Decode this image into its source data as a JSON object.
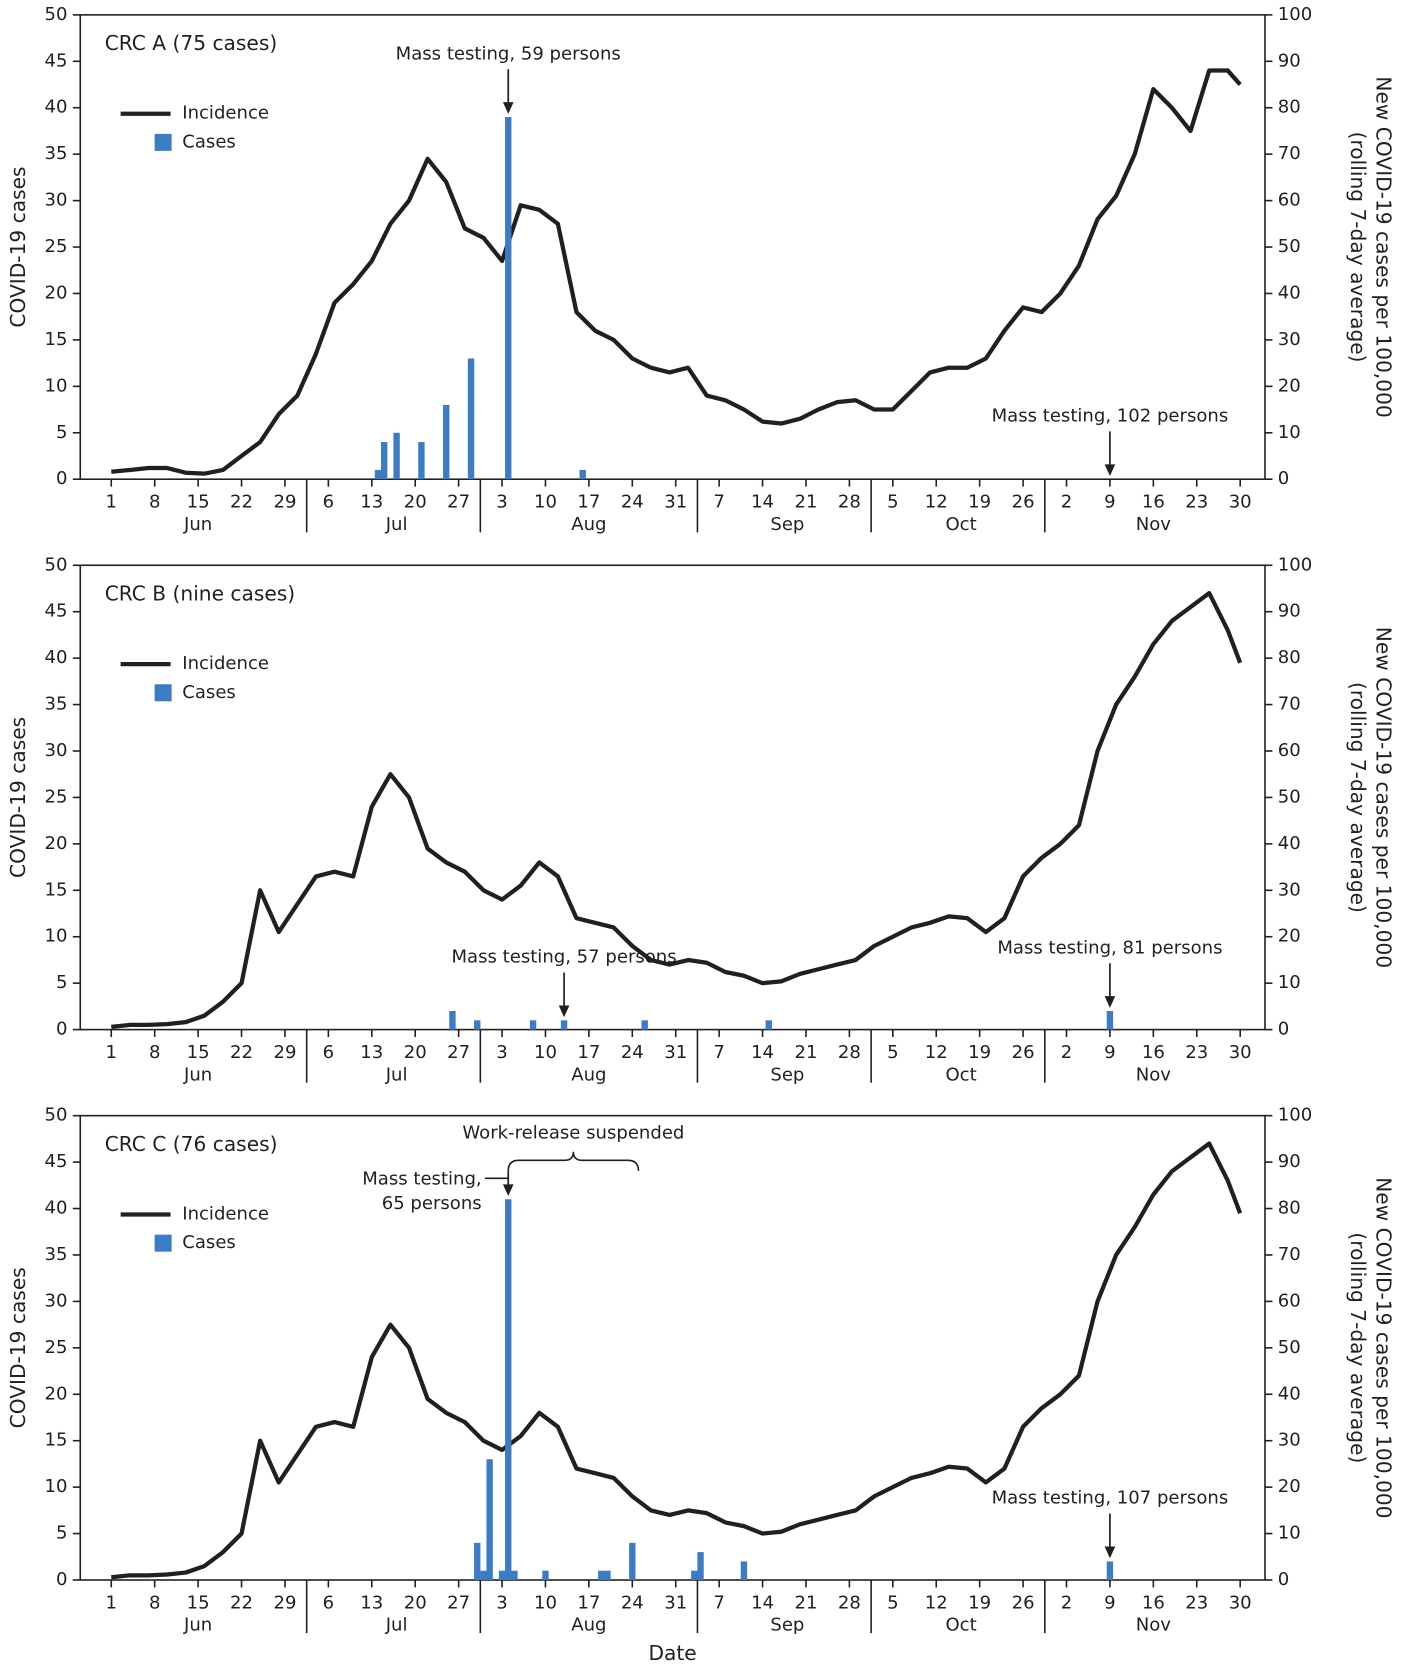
{
  "chart_data": [
    {
      "type": "combo",
      "title": "CRC A (75 cases)",
      "ylabel": "COVID-19 cases",
      "y2label": [
        "New COVID-19 cases per 100,000",
        "(rolling 7-day average)"
      ],
      "xlim": [
        -4,
        187
      ],
      "ylim": [
        0,
        50
      ],
      "y2lim": [
        0,
        100
      ],
      "legend": "upper left",
      "xticks": [
        1,
        8,
        15,
        22,
        29,
        {
          "value": 36,
          "label": "6"
        },
        {
          "value": 43,
          "label": "13"
        },
        {
          "value": 50,
          "label": "20"
        },
        {
          "value": 57,
          "label": "27"
        },
        {
          "value": 64,
          "label": "3"
        },
        {
          "value": 71,
          "label": "10"
        },
        {
          "value": 78,
          "label": "17"
        },
        {
          "value": 85,
          "label": "24"
        },
        {
          "value": 92,
          "label": "31"
        },
        {
          "value": 99,
          "label": "7"
        },
        {
          "value": 106,
          "label": "14"
        },
        {
          "value": 113,
          "label": "21"
        },
        {
          "value": 120,
          "label": "28"
        },
        {
          "value": 127,
          "label": "5"
        },
        {
          "value": 134,
          "label": "12"
        },
        {
          "value": 141,
          "label": "19"
        },
        {
          "value": 148,
          "label": "26"
        },
        {
          "value": 155,
          "label": "2"
        },
        {
          "value": 162,
          "label": "9"
        },
        {
          "value": 169,
          "label": "16"
        },
        {
          "value": 176,
          "label": "23"
        },
        {
          "value": 183,
          "label": "30"
        }
      ],
      "months": [
        {
          "value": 15,
          "label": "Jun"
        },
        {
          "value": 47,
          "label": "Jul"
        },
        {
          "value": 78,
          "label": "Aug"
        },
        {
          "value": 110,
          "label": "Sep"
        },
        {
          "value": 138,
          "label": "Oct"
        },
        {
          "value": 169,
          "label": "Nov"
        }
      ],
      "yticks": [
        0,
        5,
        10,
        15,
        20,
        25,
        30,
        35,
        40,
        45,
        50
      ],
      "y2ticks": [
        0,
        10,
        20,
        30,
        40,
        50,
        60,
        70,
        80,
        90,
        100
      ],
      "series": [
        {
          "name": "Incidence",
          "type": "line",
          "axis": "y2",
          "color": "#231f20",
          "x": [
            1,
            4,
            7,
            10,
            13,
            16,
            19,
            22,
            25,
            28,
            31,
            34,
            37,
            40,
            43,
            46,
            49,
            52,
            55,
            58,
            61,
            64,
            67,
            70,
            73,
            76,
            79,
            82,
            85,
            88,
            91,
            94,
            97,
            100,
            103,
            106,
            109,
            112,
            115,
            118,
            121,
            124,
            127,
            130,
            133,
            136,
            139,
            142,
            145,
            148,
            151,
            154,
            157,
            160,
            163,
            166,
            169,
            172,
            175,
            178,
            181,
            183
          ],
          "values": [
            1.6,
            2,
            2.4,
            2.4,
            1.4,
            1.2,
            2,
            5,
            8,
            14,
            18,
            27,
            38,
            42,
            47,
            55,
            60,
            69,
            64,
            54,
            52,
            47,
            59,
            58,
            55,
            36,
            32,
            30,
            26,
            24,
            23,
            24,
            18,
            17,
            15,
            12.4,
            12,
            13,
            15,
            16.6,
            17,
            15,
            15,
            19,
            23,
            24,
            24,
            26,
            32,
            37,
            36,
            40,
            46,
            56,
            61,
            70,
            84,
            80,
            75,
            88,
            88,
            85
          ]
        },
        {
          "name": "Cases",
          "type": "bar",
          "color": "#3b7cc4",
          "x": [
            44,
            45,
            47,
            51,
            55,
            59,
            65,
            77
          ],
          "values": [
            1,
            4,
            5,
            4,
            8,
            13,
            39,
            1
          ]
        }
      ],
      "annotations": [
        {
          "text": "Mass testing, 59 persons",
          "x": 65
        },
        {
          "text": "Mass testing, 102 persons",
          "x": 162
        }
      ]
    },
    {
      "type": "combo",
      "title": "CRC B (nine cases)",
      "ylabel": "COVID-19 cases",
      "y2label": [
        "New COVID-19 cases per 100,000",
        "(rolling 7-day average)"
      ],
      "xlim": [
        -4,
        187
      ],
      "ylim": [
        0,
        50
      ],
      "y2lim": [
        0,
        100
      ],
      "legend": "upper left",
      "xticks": [
        1,
        8,
        15,
        22,
        29,
        {
          "value": 36,
          "label": "6"
        },
        {
          "value": 43,
          "label": "13"
        },
        {
          "value": 50,
          "label": "20"
        },
        {
          "value": 57,
          "label": "27"
        },
        {
          "value": 64,
          "label": "3"
        },
        {
          "value": 71,
          "label": "10"
        },
        {
          "value": 78,
          "label": "17"
        },
        {
          "value": 85,
          "label": "24"
        },
        {
          "value": 92,
          "label": "31"
        },
        {
          "value": 99,
          "label": "7"
        },
        {
          "value": 106,
          "label": "14"
        },
        {
          "value": 113,
          "label": "21"
        },
        {
          "value": 120,
          "label": "28"
        },
        {
          "value": 127,
          "label": "5"
        },
        {
          "value": 134,
          "label": "12"
        },
        {
          "value": 141,
          "label": "19"
        },
        {
          "value": 148,
          "label": "26"
        },
        {
          "value": 155,
          "label": "2"
        },
        {
          "value": 162,
          "label": "9"
        },
        {
          "value": 169,
          "label": "16"
        },
        {
          "value": 176,
          "label": "23"
        },
        {
          "value": 183,
          "label": "30"
        }
      ],
      "months": [
        {
          "value": 15,
          "label": "Jun"
        },
        {
          "value": 47,
          "label": "Jul"
        },
        {
          "value": 78,
          "label": "Aug"
        },
        {
          "value": 110,
          "label": "Sep"
        },
        {
          "value": 138,
          "label": "Oct"
        },
        {
          "value": 169,
          "label": "Nov"
        }
      ],
      "yticks": [
        0,
        5,
        10,
        15,
        20,
        25,
        30,
        35,
        40,
        45,
        50
      ],
      "y2ticks": [
        0,
        10,
        20,
        30,
        40,
        50,
        60,
        70,
        80,
        90,
        100
      ],
      "series": [
        {
          "name": "Incidence",
          "type": "line",
          "axis": "y2",
          "color": "#231f20",
          "x": [
            1,
            4,
            7,
            10,
            13,
            16,
            19,
            22,
            25,
            28,
            31,
            34,
            37,
            40,
            43,
            46,
            49,
            52,
            55,
            58,
            61,
            64,
            67,
            70,
            73,
            76,
            79,
            82,
            85,
            88,
            91,
            94,
            97,
            100,
            103,
            106,
            109,
            112,
            115,
            118,
            121,
            124,
            127,
            130,
            133,
            136,
            139,
            142,
            145,
            148,
            151,
            154,
            157,
            160,
            163,
            166,
            169,
            172,
            175,
            178,
            181,
            183
          ],
          "values": [
            0.6,
            1,
            1,
            1.2,
            1.6,
            3,
            6,
            10,
            30,
            21,
            27,
            33,
            34,
            33,
            48,
            55,
            50,
            39,
            36,
            34,
            30,
            28,
            31,
            36,
            33,
            24,
            23,
            22,
            18,
            15,
            14,
            15,
            14.4,
            12.4,
            11.6,
            10,
            10.4,
            12,
            13,
            14,
            15,
            18,
            20,
            22,
            23,
            24.4,
            24,
            21,
            24,
            33,
            37,
            40,
            44,
            60,
            70,
            76,
            83,
            88,
            91,
            94,
            86,
            79
          ]
        },
        {
          "name": "Cases",
          "type": "bar",
          "color": "#3b7cc4",
          "x": [
            56,
            60,
            69,
            74,
            87,
            107,
            162
          ],
          "values": [
            2,
            1,
            1,
            1,
            1,
            1,
            2
          ]
        }
      ],
      "annotations": [
        {
          "text": "Mass testing, 57 persons",
          "x": 74
        },
        {
          "text": "Mass testing, 81 persons",
          "x": 162
        }
      ]
    },
    {
      "type": "combo",
      "title": "CRC C (76 cases)",
      "ylabel": "COVID-19 cases",
      "y2label": [
        "New COVID-19 cases per 100,000",
        "(rolling 7-day average)"
      ],
      "xlabel": "Date",
      "xlim": [
        -4,
        187
      ],
      "ylim": [
        0,
        50
      ],
      "y2lim": [
        0,
        100
      ],
      "legend": "upper left",
      "xticks": [
        1,
        8,
        15,
        22,
        29,
        {
          "value": 36,
          "label": "6"
        },
        {
          "value": 43,
          "label": "13"
        },
        {
          "value": 50,
          "label": "20"
        },
        {
          "value": 57,
          "label": "27"
        },
        {
          "value": 64,
          "label": "3"
        },
        {
          "value": 71,
          "label": "10"
        },
        {
          "value": 78,
          "label": "17"
        },
        {
          "value": 85,
          "label": "24"
        },
        {
          "value": 92,
          "label": "31"
        },
        {
          "value": 99,
          "label": "7"
        },
        {
          "value": 106,
          "label": "14"
        },
        {
          "value": 113,
          "label": "21"
        },
        {
          "value": 120,
          "label": "28"
        },
        {
          "value": 127,
          "label": "5"
        },
        {
          "value": 134,
          "label": "12"
        },
        {
          "value": 141,
          "label": "19"
        },
        {
          "value": 148,
          "label": "26"
        },
        {
          "value": 155,
          "label": "2"
        },
        {
          "value": 162,
          "label": "9"
        },
        {
          "value": 169,
          "label": "16"
        },
        {
          "value": 176,
          "label": "23"
        },
        {
          "value": 183,
          "label": "30"
        }
      ],
      "months": [
        {
          "value": 15,
          "label": "Jun"
        },
        {
          "value": 47,
          "label": "Jul"
        },
        {
          "value": 78,
          "label": "Aug"
        },
        {
          "value": 110,
          "label": "Sep"
        },
        {
          "value": 138,
          "label": "Oct"
        },
        {
          "value": 169,
          "label": "Nov"
        }
      ],
      "yticks": [
        0,
        5,
        10,
        15,
        20,
        25,
        30,
        35,
        40,
        45,
        50
      ],
      "y2ticks": [
        0,
        10,
        20,
        30,
        40,
        50,
        60,
        70,
        80,
        90,
        100
      ],
      "series": [
        {
          "name": "Incidence",
          "type": "line",
          "axis": "y2",
          "color": "#231f20",
          "x": [
            1,
            4,
            7,
            10,
            13,
            16,
            19,
            22,
            25,
            28,
            31,
            34,
            37,
            40,
            43,
            46,
            49,
            52,
            55,
            58,
            61,
            64,
            67,
            70,
            73,
            76,
            79,
            82,
            85,
            88,
            91,
            94,
            97,
            100,
            103,
            106,
            109,
            112,
            115,
            118,
            121,
            124,
            127,
            130,
            133,
            136,
            139,
            142,
            145,
            148,
            151,
            154,
            157,
            160,
            163,
            166,
            169,
            172,
            175,
            178,
            181,
            183
          ],
          "values": [
            0.6,
            1,
            1,
            1.2,
            1.6,
            3,
            6,
            10,
            30,
            21,
            27,
            33,
            34,
            33,
            48,
            55,
            50,
            39,
            36,
            34,
            30,
            28,
            31,
            36,
            33,
            24,
            23,
            22,
            18,
            15,
            14,
            15,
            14.4,
            12.4,
            11.6,
            10,
            10.4,
            12,
            13,
            14,
            15,
            18,
            20,
            22,
            23,
            24.4,
            24,
            21,
            24,
            33,
            37,
            40,
            44,
            60,
            70,
            76,
            83,
            88,
            91,
            94,
            86,
            79
          ]
        },
        {
          "name": "Cases",
          "type": "bar",
          "color": "#3b7cc4",
          "x": [
            60,
            61,
            62,
            64,
            65,
            66,
            71,
            80,
            81,
            85,
            95,
            96,
            103,
            162
          ],
          "values": [
            4,
            1,
            13,
            1,
            41,
            1,
            1,
            1,
            1,
            4,
            1,
            3,
            2,
            2
          ]
        }
      ],
      "annotations": [
        {
          "text": [
            "Mass testing,",
            "65 persons"
          ],
          "x": 65
        },
        {
          "text": "Mass testing, 107 persons",
          "x": 162
        }
      ],
      "bracket": {
        "text": "Work-release suspended",
        "x_start": 65,
        "x_end": 86
      }
    }
  ]
}
